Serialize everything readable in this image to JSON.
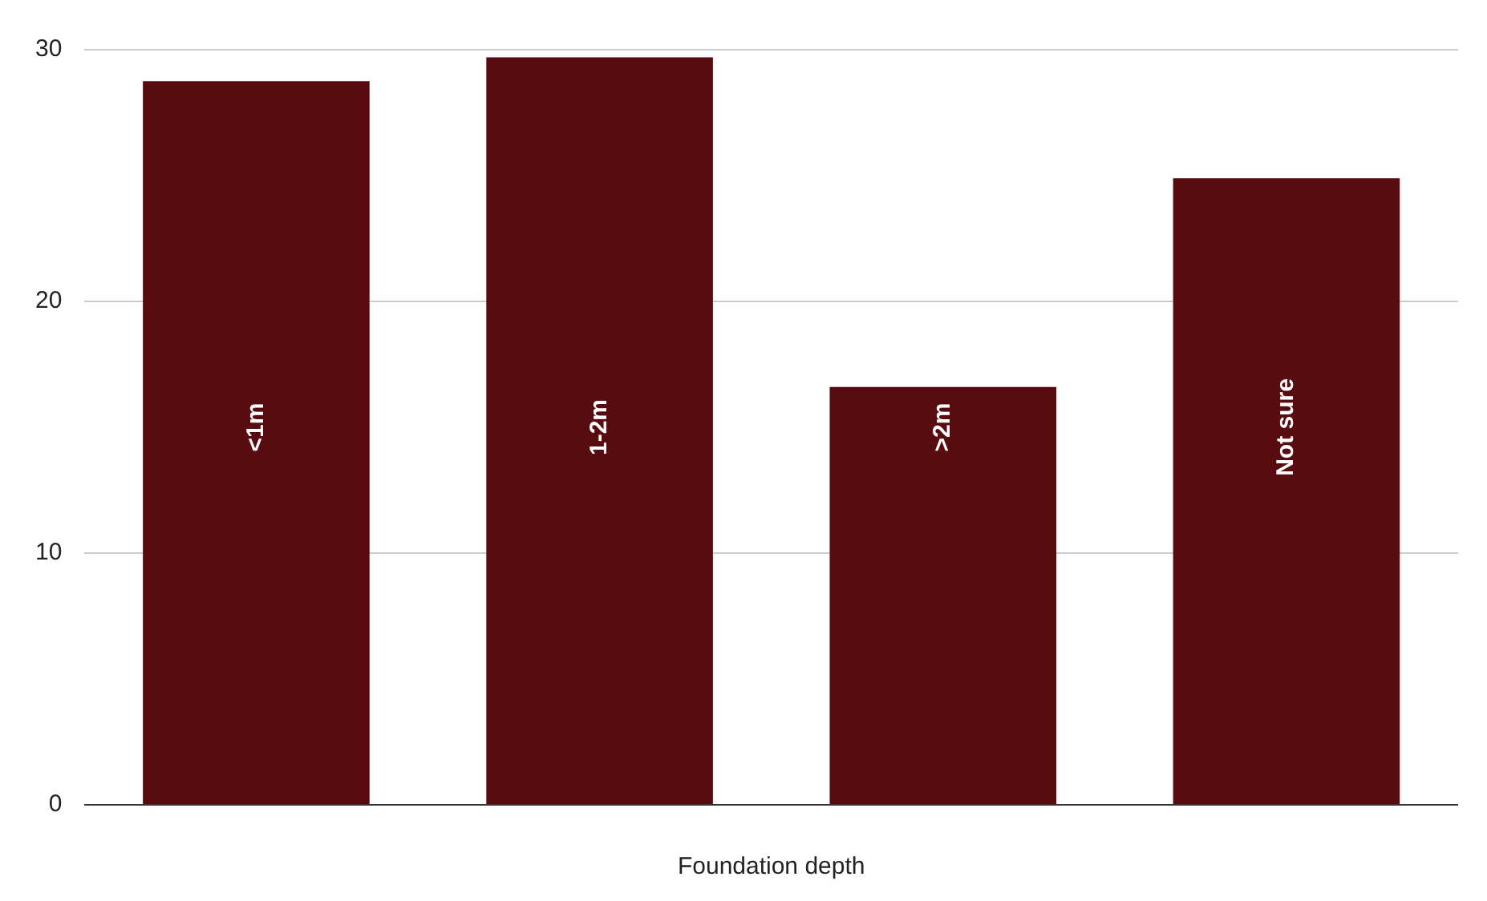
{
  "chart_data": {
    "type": "bar",
    "xlabel": "Foundation depth",
    "categories": [
      "<1m",
      "1-2m",
      ">2m",
      "Not sure"
    ],
    "values": [
      28.75,
      29.7,
      16.6,
      24.9
    ],
    "color": "#580c10",
    "ylim": [
      0,
      30
    ],
    "yticks": [
      0,
      10,
      20,
      30
    ],
    "grid": "y",
    "legend": false
  }
}
